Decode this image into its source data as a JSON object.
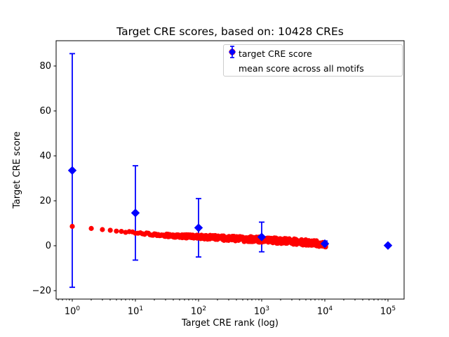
{
  "chart_data": {
    "type": "scatter",
    "title": "Target CRE scores, based on: 10428 CREs",
    "xlabel": "Target CRE rank (log)",
    "ylabel": "Target CRE score",
    "x_scale": "log10",
    "xlim_log10": [
      -0.26,
      5.26
    ],
    "ylim": [
      -23.8,
      91.3
    ],
    "grid": false,
    "background": "#ffffff",
    "x_ticks": [
      {
        "base": "10",
        "exp": "0",
        "value": 1
      },
      {
        "base": "10",
        "exp": "1",
        "value": 10
      },
      {
        "base": "10",
        "exp": "2",
        "value": 100
      },
      {
        "base": "10",
        "exp": "3",
        "value": 1000
      },
      {
        "base": "10",
        "exp": "4",
        "value": 10000
      },
      {
        "base": "10",
        "exp": "5",
        "value": 100000
      }
    ],
    "y_ticks": [
      {
        "label": "−20",
        "value": -20
      },
      {
        "label": "0",
        "value": 0
      },
      {
        "label": "20",
        "value": 20
      },
      {
        "label": "40",
        "value": 40
      },
      {
        "label": "60",
        "value": 60
      },
      {
        "label": "80",
        "value": 80
      }
    ],
    "series": [
      {
        "name": "target CRE score",
        "color": "#ff0000",
        "marker": "circle",
        "n_points": 10428,
        "anchors": [
          [
            1,
            8.6
          ],
          [
            2,
            7.7
          ],
          [
            3,
            7.15
          ],
          [
            4,
            6.85
          ],
          [
            5,
            6.6
          ],
          [
            6,
            6.4
          ],
          [
            7,
            6.2
          ],
          [
            8,
            6.05
          ],
          [
            9,
            5.95
          ],
          [
            10,
            5.85
          ],
          [
            15,
            5.35
          ],
          [
            20,
            5.0
          ],
          [
            30,
            4.65
          ],
          [
            50,
            4.3
          ],
          [
            70,
            4.15
          ],
          [
            100,
            4.0
          ],
          [
            200,
            3.55
          ],
          [
            300,
            3.3
          ],
          [
            500,
            3.0
          ],
          [
            700,
            2.85
          ],
          [
            1000,
            2.65
          ],
          [
            2000,
            2.2
          ],
          [
            3000,
            1.9
          ],
          [
            5000,
            1.45
          ],
          [
            7000,
            1.1
          ],
          [
            10000,
            0.6
          ],
          [
            10428,
            0.5
          ]
        ]
      },
      {
        "name": "mean score across all motifs",
        "color": "#0000ff",
        "marker": "diamond",
        "points": [
          {
            "rank": 1,
            "mean": 33.5,
            "err": 52
          },
          {
            "rank": 10,
            "mean": 14.6,
            "err": 21
          },
          {
            "rank": 100,
            "mean": 8.0,
            "err": 13
          },
          {
            "rank": 1000,
            "mean": 3.9,
            "err": 6.6
          },
          {
            "rank": 10000,
            "mean": 0.9,
            "err": 1.2
          },
          {
            "rank": 100000,
            "mean": 0.1,
            "err": 0
          }
        ]
      }
    ],
    "legend": {
      "position": "upper right",
      "entries": [
        {
          "label": "target CRE score",
          "marker": "circle",
          "color": "#ff0000"
        },
        {
          "label": "mean score across all motifs",
          "marker": "diamond-errorbar",
          "color": "#0000ff"
        }
      ]
    }
  }
}
